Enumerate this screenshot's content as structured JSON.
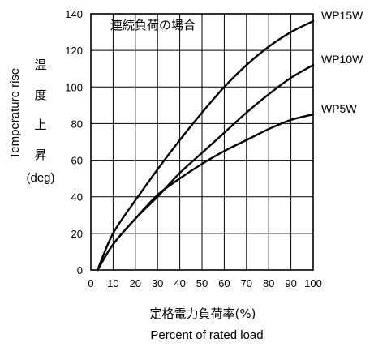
{
  "chart_data": {
    "type": "line",
    "title": "連続負荷の場合",
    "xlabel_jp": "定格電力負荷率(%)",
    "xlabel": "Percent of rated load",
    "ylabel": "Temperature rise",
    "ylabel_jp_chars": [
      "温",
      "度",
      "上",
      "昇"
    ],
    "yunit": "(deg)",
    "xlim": [
      0,
      100
    ],
    "ylim": [
      0,
      140
    ],
    "xticks": [
      0,
      10,
      20,
      30,
      40,
      50,
      60,
      70,
      80,
      90,
      100
    ],
    "yticks": [
      0,
      20,
      40,
      60,
      80,
      100,
      120,
      140
    ],
    "grid": true,
    "series": [
      {
        "name": "WP15W",
        "x": [
          3,
          10,
          20,
          30,
          40,
          50,
          60,
          70,
          80,
          90,
          100
        ],
        "y": [
          0,
          20,
          38,
          55,
          71,
          86,
          100,
          112,
          122,
          130,
          136
        ]
      },
      {
        "name": "WP10W",
        "x": [
          3,
          10,
          20,
          30,
          40,
          50,
          60,
          70,
          80,
          90,
          100
        ],
        "y": [
          0,
          14,
          28,
          40,
          53,
          64,
          75,
          86,
          96,
          105,
          112
        ]
      },
      {
        "name": "WP5W",
        "x": [
          3,
          10,
          20,
          30,
          40,
          50,
          60,
          70,
          80,
          90,
          100
        ],
        "y": [
          0,
          14,
          28,
          41,
          50,
          58,
          65,
          71,
          77,
          82,
          85
        ]
      }
    ]
  }
}
